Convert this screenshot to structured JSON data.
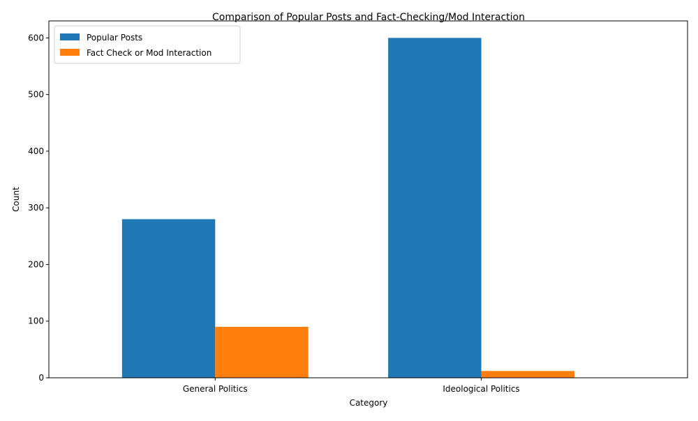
{
  "chart_data": {
    "type": "bar",
    "title": "Comparison of Popular Posts and Fact-Checking/Mod Interaction",
    "xlabel": "Category",
    "ylabel": "Count",
    "categories": [
      "General Politics",
      "Ideological Politics"
    ],
    "series": [
      {
        "name": "Popular Posts",
        "values": [
          280,
          600
        ],
        "color": "#1f77b4"
      },
      {
        "name": "Fact Check or Mod Interaction",
        "values": [
          90,
          12
        ],
        "color": "#ff7f0e"
      }
    ],
    "ylim": [
      0,
      630
    ],
    "yticks": [
      0,
      100,
      200,
      300,
      400,
      500,
      600
    ],
    "grid": false,
    "legend_position": "top-left"
  }
}
